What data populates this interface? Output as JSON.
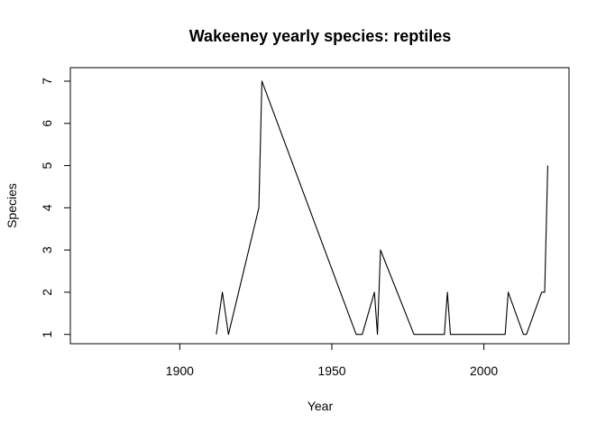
{
  "chart_data": {
    "type": "line",
    "title": "Wakeeney yearly species: reptiles",
    "xlabel": "Year",
    "ylabel": "Species",
    "xlim": [
      1864,
      2028
    ],
    "ylim": [
      0.78,
      7.32
    ],
    "xticks": [
      1900,
      1950,
      2000
    ],
    "yticks": [
      1,
      2,
      3,
      4,
      5,
      6,
      7
    ],
    "grid": false,
    "series": [
      {
        "name": "reptiles",
        "x": [
          1912,
          1914,
          1916,
          1926,
          1927,
          1958,
          1960,
          1964,
          1965,
          1966,
          1977,
          1987,
          1988,
          1989,
          2007,
          2008,
          2013,
          2014,
          2019,
          2020,
          2021
        ],
        "y": [
          1,
          2,
          1,
          4,
          7,
          1,
          1,
          2,
          1,
          3,
          1,
          1,
          2,
          1,
          1,
          2,
          1,
          1,
          2,
          2,
          5
        ],
        "color": "#000000"
      }
    ]
  }
}
